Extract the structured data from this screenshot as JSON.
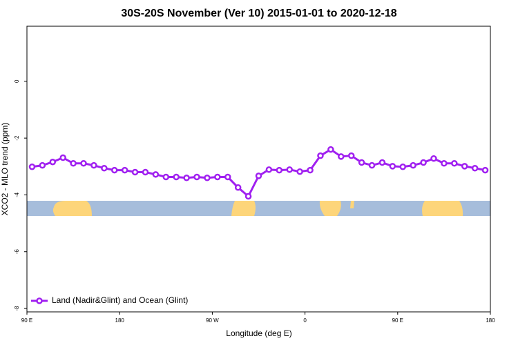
{
  "chart_data": {
    "type": "line",
    "title": "30S-20S November (Ver 10)   2015-01-01 to 2020-12-18",
    "xlabel": "Longitude (deg E)",
    "ylabel": "XCO2 - MLO trend (ppm)",
    "x": [
      95,
      105,
      115,
      125,
      135,
      145,
      155,
      165,
      175,
      185,
      195,
      205,
      215,
      225,
      235,
      245,
      255,
      265,
      275,
      285,
      295,
      305,
      315,
      325,
      335,
      345,
      355,
      365,
      375,
      385,
      395,
      405,
      415,
      425,
      435,
      445,
      455,
      465,
      475,
      485,
      495,
      505,
      515,
      525,
      535
    ],
    "series": [
      {
        "name": "Land (Nadir&Glint) and Ocean (Glint)",
        "color": "#a020f0",
        "values": [
          -3.01,
          -2.96,
          -2.84,
          -2.69,
          -2.89,
          -2.89,
          -2.96,
          -3.06,
          -3.13,
          -3.13,
          -3.2,
          -3.2,
          -3.28,
          -3.37,
          -3.37,
          -3.4,
          -3.37,
          -3.4,
          -3.37,
          -3.37,
          -3.74,
          -4.05,
          -3.33,
          -3.11,
          -3.13,
          -3.11,
          -3.18,
          -3.13,
          -2.62,
          -2.4,
          -2.65,
          -2.62,
          -2.86,
          -2.96,
          -2.86,
          -2.99,
          -3.01,
          -2.96,
          -2.86,
          -2.72,
          -2.89,
          -2.89,
          -2.99,
          -3.06,
          -3.13
        ]
      }
    ],
    "xlim": [
      90,
      540
    ],
    "xticks": [
      {
        "value": 90,
        "label": "90 E"
      },
      180,
      {
        "value": 270,
        "label": "90 W"
      },
      {
        "value": 360,
        "label": "0"
      },
      {
        "value": 450,
        "label": "90 E"
      },
      {
        "value": 540,
        "label": "180"
      }
    ],
    "ylim": [
      -8.12,
      1.94
    ],
    "yticks": [
      -8,
      -6,
      -4,
      -2,
      0
    ],
    "legend": "bottom-left"
  }
}
